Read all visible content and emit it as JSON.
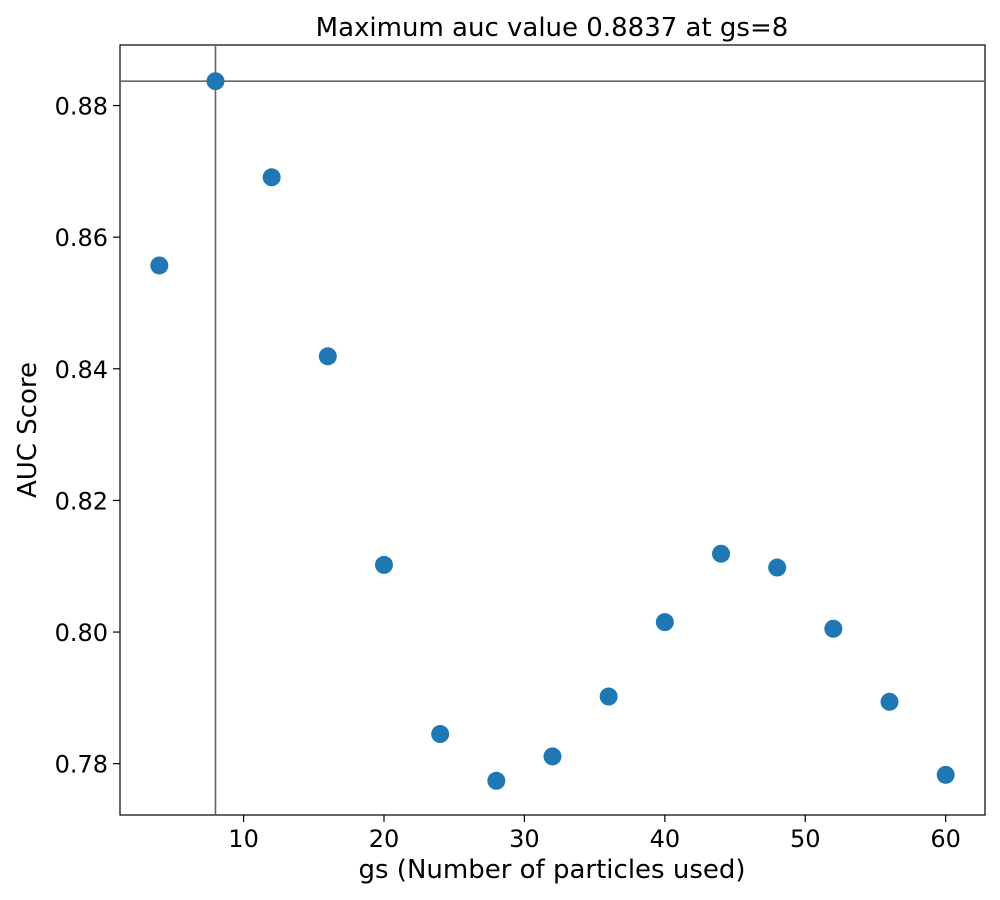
{
  "chart_data": {
    "type": "scatter",
    "title": "Maximum auc value 0.8837 at gs=8",
    "xlabel": "gs (Number of particles used)",
    "ylabel": "AUC Score",
    "xlim": [
      1.2,
      62.8
    ],
    "ylim": [
      0.7722,
      0.8892
    ],
    "xticks": [
      10,
      20,
      30,
      40,
      50,
      60
    ],
    "yticks": [
      0.78,
      0.8,
      0.82,
      0.84,
      0.86,
      0.88
    ],
    "xtick_labels": [
      "10",
      "20",
      "30",
      "40",
      "50",
      "60"
    ],
    "ytick_labels": [
      "0.78",
      "0.80",
      "0.82",
      "0.84",
      "0.86",
      "0.88"
    ],
    "grid": false,
    "series": [
      {
        "color": "#1f77b4",
        "points": [
          {
            "x": 4,
            "y": 0.8557
          },
          {
            "x": 8,
            "y": 0.8837
          },
          {
            "x": 12,
            "y": 0.8691
          },
          {
            "x": 16,
            "y": 0.8419
          },
          {
            "x": 20,
            "y": 0.8102
          },
          {
            "x": 24,
            "y": 0.7845
          },
          {
            "x": 28,
            "y": 0.7774
          },
          {
            "x": 32,
            "y": 0.7811
          },
          {
            "x": 36,
            "y": 0.7902
          },
          {
            "x": 40,
            "y": 0.8015
          },
          {
            "x": 44,
            "y": 0.8119
          },
          {
            "x": 48,
            "y": 0.8098
          },
          {
            "x": 52,
            "y": 0.8005
          },
          {
            "x": 56,
            "y": 0.7894
          },
          {
            "x": 60,
            "y": 0.7783
          }
        ]
      }
    ],
    "reference_lines": {
      "vertical_x": 8,
      "horizontal_y": 0.8837,
      "color": "#666666"
    }
  }
}
